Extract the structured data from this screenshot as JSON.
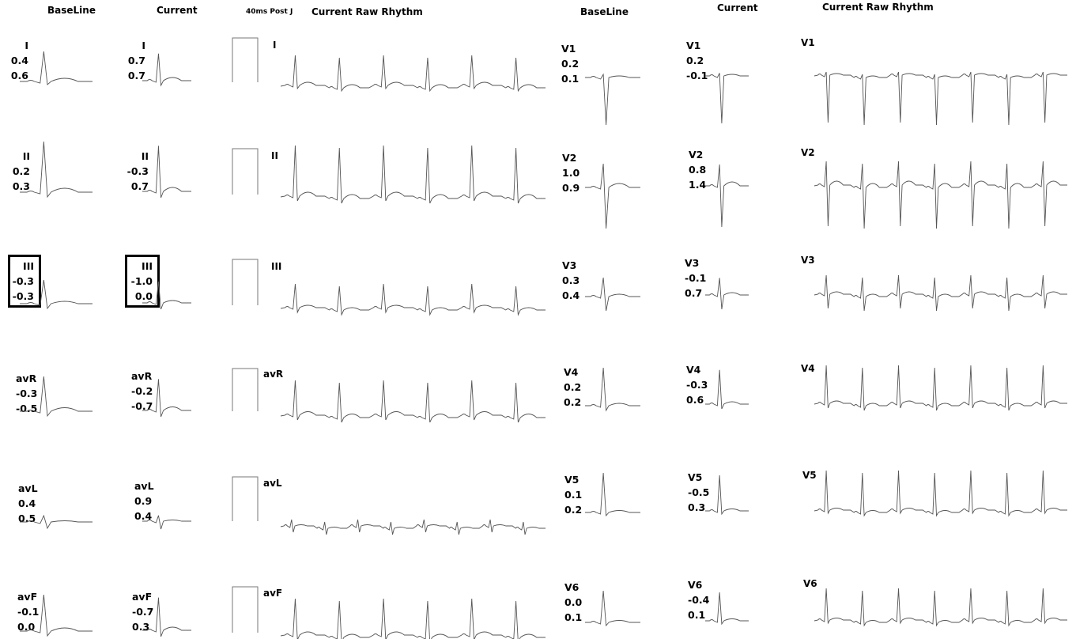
{
  "headers": {
    "baseline_left": "BaseLine",
    "current_left": "Current",
    "post_j": "40ms Post J",
    "raw_left": "Current Raw Rhythm",
    "baseline_right": "BaseLine",
    "current_right": "Current",
    "raw_right": "Current Raw Rhythm"
  },
  "limb_leads": [
    {
      "lead": "I",
      "baseline": [
        "0.4",
        "0.6"
      ],
      "current": [
        "0.7",
        "0.7"
      ],
      "highlighted": false
    },
    {
      "lead": "II",
      "baseline": [
        "0.2",
        "0.3"
      ],
      "current": [
        "-0.3",
        "0.7"
      ],
      "highlighted": false
    },
    {
      "lead": "III",
      "baseline": [
        "-0.3",
        "-0.3"
      ],
      "current": [
        "-1.0",
        "0.0"
      ],
      "highlighted": true
    },
    {
      "lead": "avR",
      "baseline": [
        "-0.3",
        "-0.5"
      ],
      "current": [
        "-0.2",
        "-0.7"
      ],
      "highlighted": false
    },
    {
      "lead": "avL",
      "baseline": [
        "0.4",
        "0.5"
      ],
      "current": [
        "0.9",
        "0.4"
      ],
      "highlighted": false
    },
    {
      "lead": "avF",
      "baseline": [
        "-0.1",
        "0.0"
      ],
      "current": [
        "-0.7",
        "0.3"
      ],
      "highlighted": false
    }
  ],
  "precordial_leads": [
    {
      "lead": "V1",
      "baseline": [
        "0.2",
        "0.1"
      ],
      "current": [
        "0.2",
        "-0.1"
      ]
    },
    {
      "lead": "V2",
      "baseline": [
        "1.0",
        "0.9"
      ],
      "current": [
        "0.8",
        "1.4"
      ]
    },
    {
      "lead": "V3",
      "baseline": [
        "0.3",
        "0.4"
      ],
      "current": [
        "-0.1",
        "0.7"
      ]
    },
    {
      "lead": "V4",
      "baseline": [
        "0.2",
        "0.2"
      ],
      "current": [
        "-0.3",
        "0.6"
      ]
    },
    {
      "lead": "V5",
      "baseline": [
        "0.1",
        "0.2"
      ],
      "current": [
        "-0.5",
        "0.3"
      ]
    },
    {
      "lead": "V6",
      "baseline": [
        "0.0",
        "0.1"
      ],
      "current": [
        "-0.4",
        "0.1"
      ]
    }
  ]
}
